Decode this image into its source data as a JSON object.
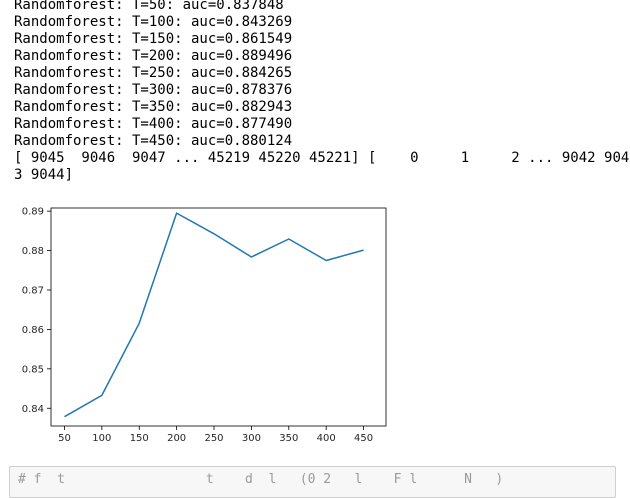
{
  "output": {
    "lines": [
      "Randomforest: T=50: auc=0.837848",
      "Randomforest: T=100: auc=0.843269",
      "Randomforest: T=150: auc=0.861549",
      "Randomforest: T=200: auc=0.889496",
      "Randomforest: T=250: auc=0.884265",
      "Randomforest: T=300: auc=0.878376",
      "Randomforest: T=350: auc=0.882943",
      "Randomforest: T=400: auc=0.877490",
      "Randomforest: T=450: auc=0.880124",
      "[ 9045  9046  9047 ... 45219 45220 45221] [    0     1     2 ... 9042 904",
      "3 9044]"
    ]
  },
  "chart_data": {
    "type": "line",
    "x": [
      50,
      100,
      150,
      200,
      250,
      300,
      350,
      400,
      450
    ],
    "series": [
      {
        "values": [
          0.837848,
          0.843269,
          0.861549,
          0.889496,
          0.884265,
          0.878376,
          0.882943,
          0.87749,
          0.880124
        ],
        "color": "#1f77b4"
      }
    ],
    "xticks": [
      "50",
      "100",
      "150",
      "200",
      "250",
      "300",
      "350",
      "400",
      "450"
    ],
    "yticks": [
      "0.84",
      "0.85",
      "0.86",
      "0.87",
      "0.88",
      "0.89"
    ],
    "xlim": [
      32,
      480
    ],
    "ylim": [
      0.8355,
      0.8908
    ],
    "grid": false
  },
  "next_cell": {
    "code": "# f  t                  t    d  l   (0 2   l    F l      N   )"
  }
}
